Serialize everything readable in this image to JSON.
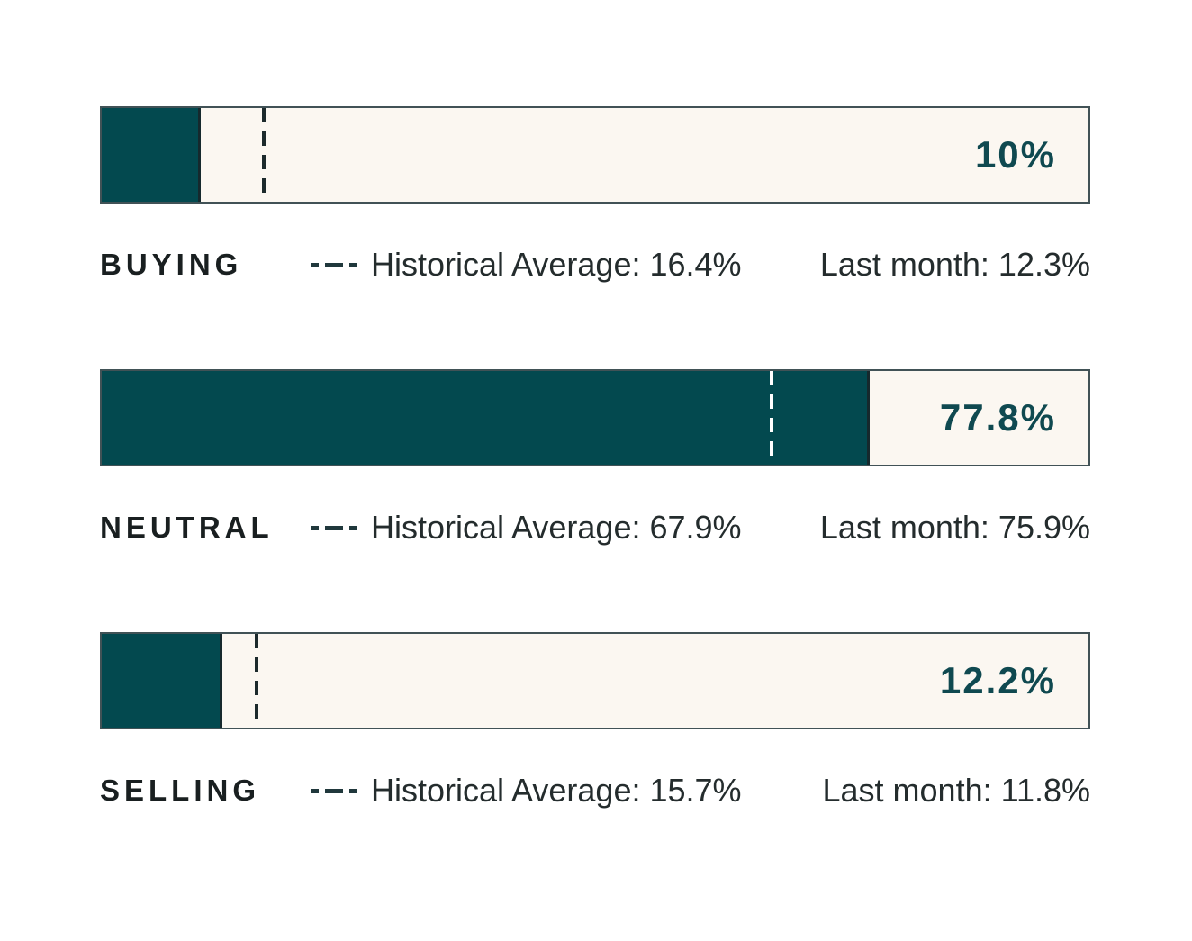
{
  "colors": {
    "page-bg": "#ffffff",
    "bar-fill": "#03494f",
    "bar-track": "#fbf7f1",
    "bar-border": "#415256",
    "fill-edge": "#16292d",
    "value-text": "#0f4950",
    "label-text": "#191f20",
    "legend-text": "#242c2d",
    "dash-icon": "#20383c",
    "marker-dark": "#1c2a2c",
    "marker-light": "#ffffff"
  },
  "chart_data": {
    "type": "bar",
    "orientation": "horizontal",
    "unit": "%",
    "xlim": [
      0,
      100
    ],
    "grid": false,
    "legend_marker": "dashed-line",
    "series": [
      {
        "label": "BUYING",
        "value": 10,
        "value_label": "10%",
        "historical_average": 16.4,
        "historical_average_label": "Historical Average: 16.4%",
        "last_month": 12.3,
        "last_month_label": "Last month: 12.3%"
      },
      {
        "label": "NEUTRAL",
        "value": 77.8,
        "value_label": "77.8%",
        "historical_average": 67.9,
        "historical_average_label": "Historical Average: 67.9%",
        "last_month": 75.9,
        "last_month_label": "Last month: 75.9%"
      },
      {
        "label": "SELLING",
        "value": 12.2,
        "value_label": "12.2%",
        "historical_average": 15.7,
        "historical_average_label": "Historical Average: 15.7%",
        "last_month": 11.8,
        "last_month_label": "Last month: 11.8%"
      }
    ]
  }
}
